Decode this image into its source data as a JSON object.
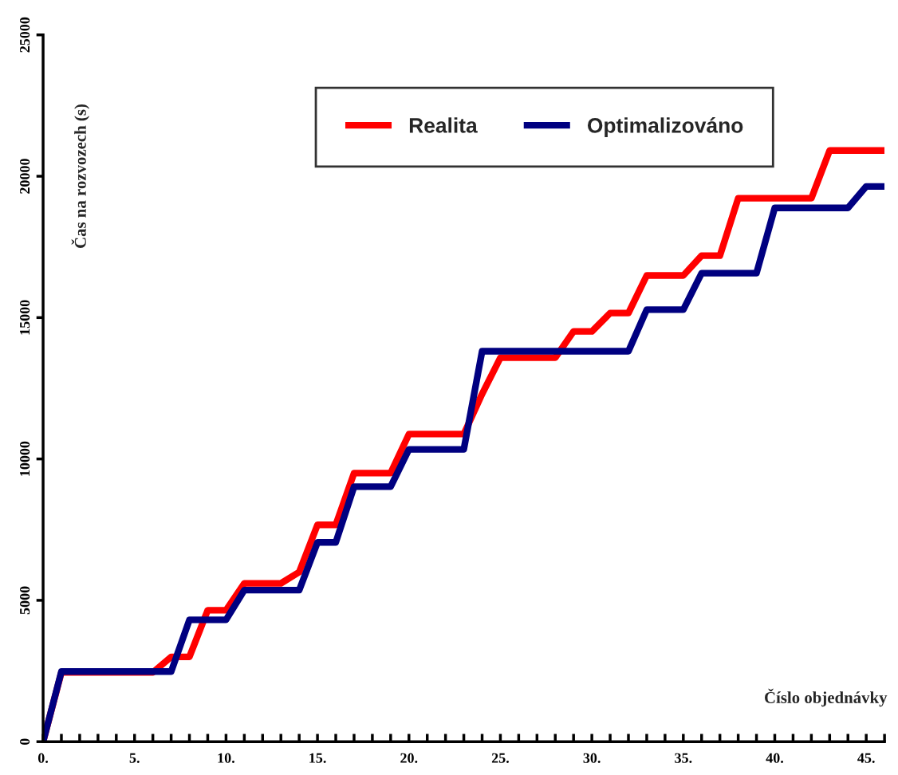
{
  "chart_data": {
    "type": "line",
    "xlabel": "Číslo objednávky",
    "ylabel": "Čas na rozvozech (s)",
    "x": [
      0,
      1,
      2,
      3,
      4,
      5,
      6,
      7,
      8,
      9,
      10,
      11,
      12,
      13,
      14,
      15,
      16,
      17,
      18,
      19,
      20,
      21,
      22,
      23,
      24,
      25,
      26,
      27,
      28,
      29,
      30,
      31,
      32,
      33,
      34,
      35,
      36,
      37,
      38,
      39,
      40,
      41,
      42,
      43,
      44,
      45,
      46
    ],
    "series": [
      {
        "name": "Realita",
        "color": "#ff0000",
        "values": [
          0,
          2450,
          2450,
          2450,
          2450,
          2450,
          2450,
          3000,
          3000,
          4650,
          4650,
          5600,
          5600,
          5600,
          6000,
          7670,
          7670,
          9500,
          9500,
          9500,
          10880,
          10880,
          10880,
          10880,
          12300,
          13580,
          13580,
          13580,
          13580,
          14510,
          14510,
          15160,
          15160,
          16490,
          16490,
          16490,
          17190,
          17190,
          19220,
          19220,
          19220,
          19220,
          19220,
          20910,
          20910,
          20910,
          20910
        ]
      },
      {
        "name": "Optimalizováno",
        "color": "#000080",
        "values": [
          0,
          2480,
          2480,
          2480,
          2480,
          2480,
          2480,
          2480,
          4310,
          4310,
          4310,
          5360,
          5360,
          5360,
          5360,
          7050,
          7050,
          9020,
          9020,
          9020,
          10340,
          10340,
          10340,
          10340,
          13810,
          13810,
          13810,
          13810,
          13810,
          13810,
          13810,
          13810,
          13810,
          15280,
          15280,
          15280,
          16570,
          16570,
          16570,
          16570,
          18880,
          18880,
          18880,
          18880,
          18880,
          19640,
          19640
        ]
      }
    ],
    "xlim": [
      0,
      46
    ],
    "ylim": [
      0,
      25000
    ],
    "xticks": [
      {
        "value": 0,
        "label": "0."
      },
      {
        "value": 1,
        "label": null
      },
      {
        "value": 2,
        "label": null
      },
      {
        "value": 3,
        "label": null
      },
      {
        "value": 4,
        "label": null
      },
      {
        "value": 5,
        "label": "5."
      },
      {
        "value": 6,
        "label": null
      },
      {
        "value": 7,
        "label": null
      },
      {
        "value": 8,
        "label": null
      },
      {
        "value": 9,
        "label": null
      },
      {
        "value": 10,
        "label": "10."
      },
      {
        "value": 11,
        "label": null
      },
      {
        "value": 12,
        "label": null
      },
      {
        "value": 13,
        "label": null
      },
      {
        "value": 14,
        "label": null
      },
      {
        "value": 15,
        "label": "15."
      },
      {
        "value": 16,
        "label": null
      },
      {
        "value": 17,
        "label": null
      },
      {
        "value": 18,
        "label": null
      },
      {
        "value": 19,
        "label": null
      },
      {
        "value": 20,
        "label": "20."
      },
      {
        "value": 21,
        "label": null
      },
      {
        "value": 22,
        "label": null
      },
      {
        "value": 23,
        "label": null
      },
      {
        "value": 24,
        "label": null
      },
      {
        "value": 25,
        "label": "25."
      },
      {
        "value": 26,
        "label": null
      },
      {
        "value": 27,
        "label": null
      },
      {
        "value": 28,
        "label": null
      },
      {
        "value": 29,
        "label": null
      },
      {
        "value": 30,
        "label": "30."
      },
      {
        "value": 31,
        "label": null
      },
      {
        "value": 32,
        "label": null
      },
      {
        "value": 33,
        "label": null
      },
      {
        "value": 34,
        "label": null
      },
      {
        "value": 35,
        "label": "35."
      },
      {
        "value": 36,
        "label": null
      },
      {
        "value": 37,
        "label": null
      },
      {
        "value": 38,
        "label": null
      },
      {
        "value": 39,
        "label": null
      },
      {
        "value": 40,
        "label": "40."
      },
      {
        "value": 41,
        "label": null
      },
      {
        "value": 42,
        "label": null
      },
      {
        "value": 43,
        "label": null
      },
      {
        "value": 44,
        "label": null
      },
      {
        "value": 45,
        "label": "45."
      },
      {
        "value": 46,
        "label": null
      }
    ],
    "yticks": [
      0,
      5000,
      10000,
      15000,
      20000,
      25000
    ],
    "grid": false,
    "legend": "top right",
    "line_style": "solid",
    "marker": "none"
  }
}
